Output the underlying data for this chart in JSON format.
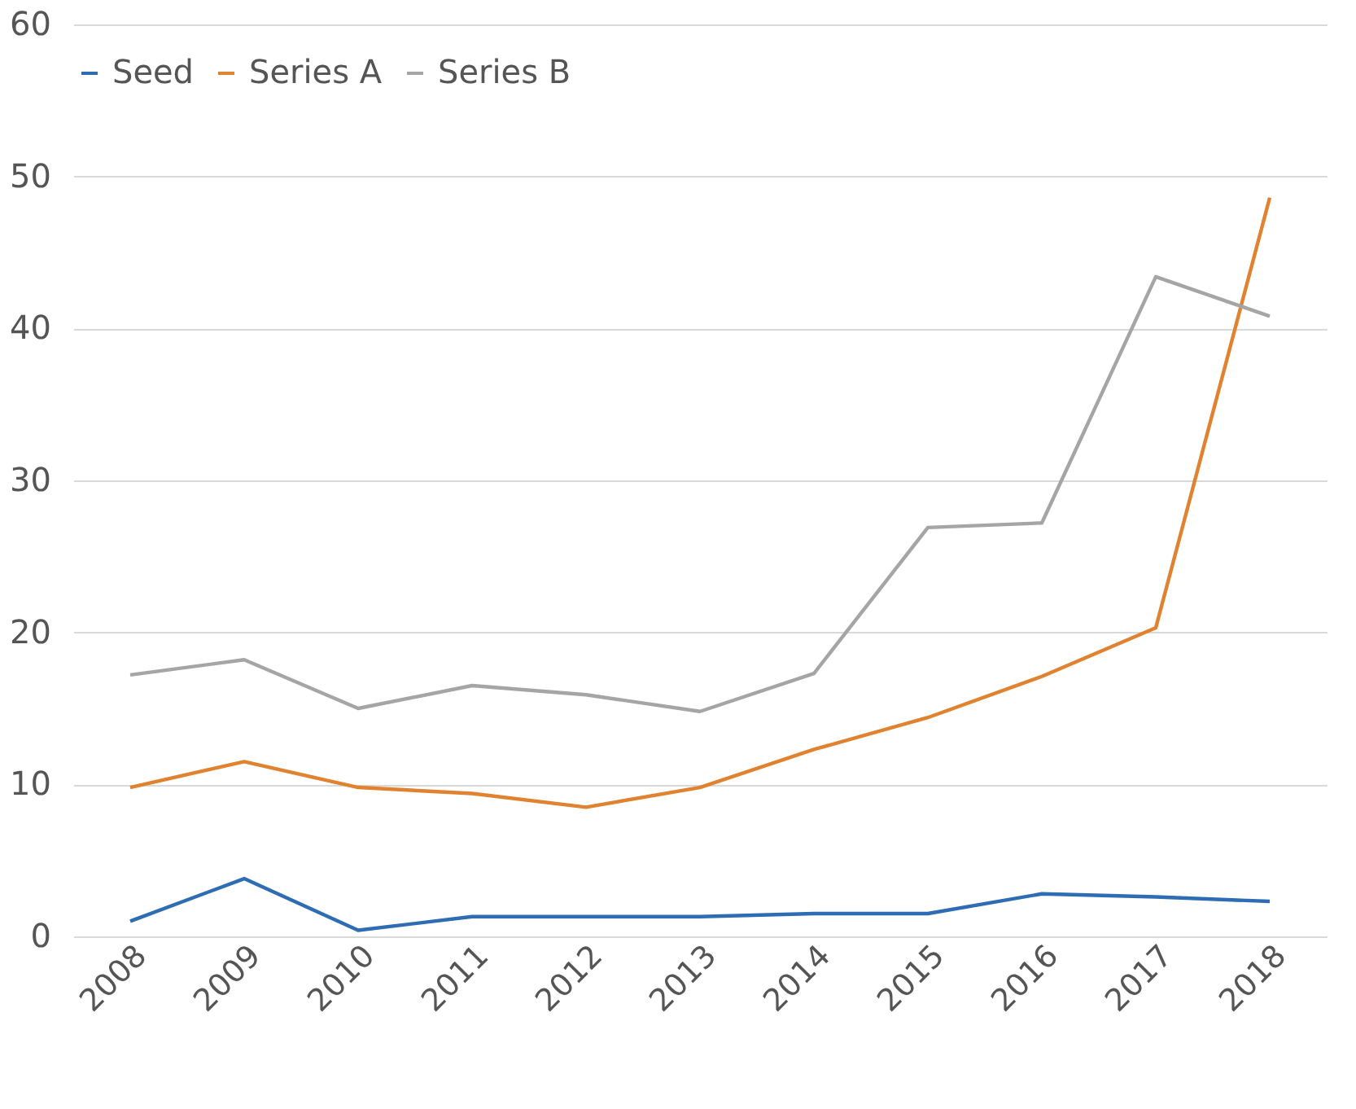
{
  "chart_data": {
    "type": "line",
    "categories": [
      "2008",
      "2009",
      "2010",
      "2011",
      "2012",
      "2013",
      "2014",
      "2015",
      "2016",
      "2017",
      "2018"
    ],
    "series": [
      {
        "name": "Seed",
        "color": "#2e6db4",
        "values": [
          1.0,
          3.8,
          0.4,
          1.3,
          1.3,
          1.3,
          1.5,
          1.5,
          2.8,
          2.6,
          2.3
        ]
      },
      {
        "name": "Series A",
        "color": "#e0822f",
        "values": [
          9.8,
          11.5,
          9.8,
          9.4,
          8.5,
          9.8,
          12.3,
          14.4,
          17.1,
          20.3,
          48.6
        ]
      },
      {
        "name": "Series B",
        "color": "#a5a5a5",
        "values": [
          17.2,
          18.2,
          15.0,
          16.5,
          15.9,
          14.8,
          17.3,
          26.9,
          27.2,
          43.4,
          40.8
        ]
      }
    ],
    "ylim": [
      0,
      60
    ],
    "yticks": [
      0,
      10,
      20,
      30,
      40,
      50,
      60
    ],
    "grid": "y",
    "legend": "top",
    "marker": "none",
    "line_style": "solid"
  }
}
